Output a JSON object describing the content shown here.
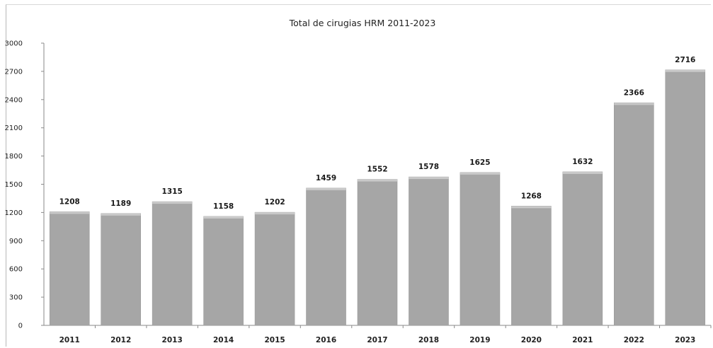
{
  "chart_data": {
    "type": "bar",
    "title": "Total de cirugias HRM 2011-2023",
    "xlabel": "",
    "ylabel": "",
    "categories": [
      "2011",
      "2012",
      "2013",
      "2014",
      "2015",
      "2016",
      "2017",
      "2018",
      "2019",
      "2020",
      "2021",
      "2022",
      "2023"
    ],
    "values": [
      1208,
      1189,
      1315,
      1158,
      1202,
      1459,
      1552,
      1578,
      1625,
      1268,
      1632,
      2366,
      2716
    ],
    "ylim": [
      0,
      3000
    ],
    "yticks": [
      0,
      300,
      600,
      900,
      1200,
      1500,
      1800,
      2100,
      2400,
      2700,
      3000
    ],
    "grid": false,
    "legend": "none",
    "bar_color": "#a6a6a6",
    "bar_top_color": "#c9c9c9"
  }
}
